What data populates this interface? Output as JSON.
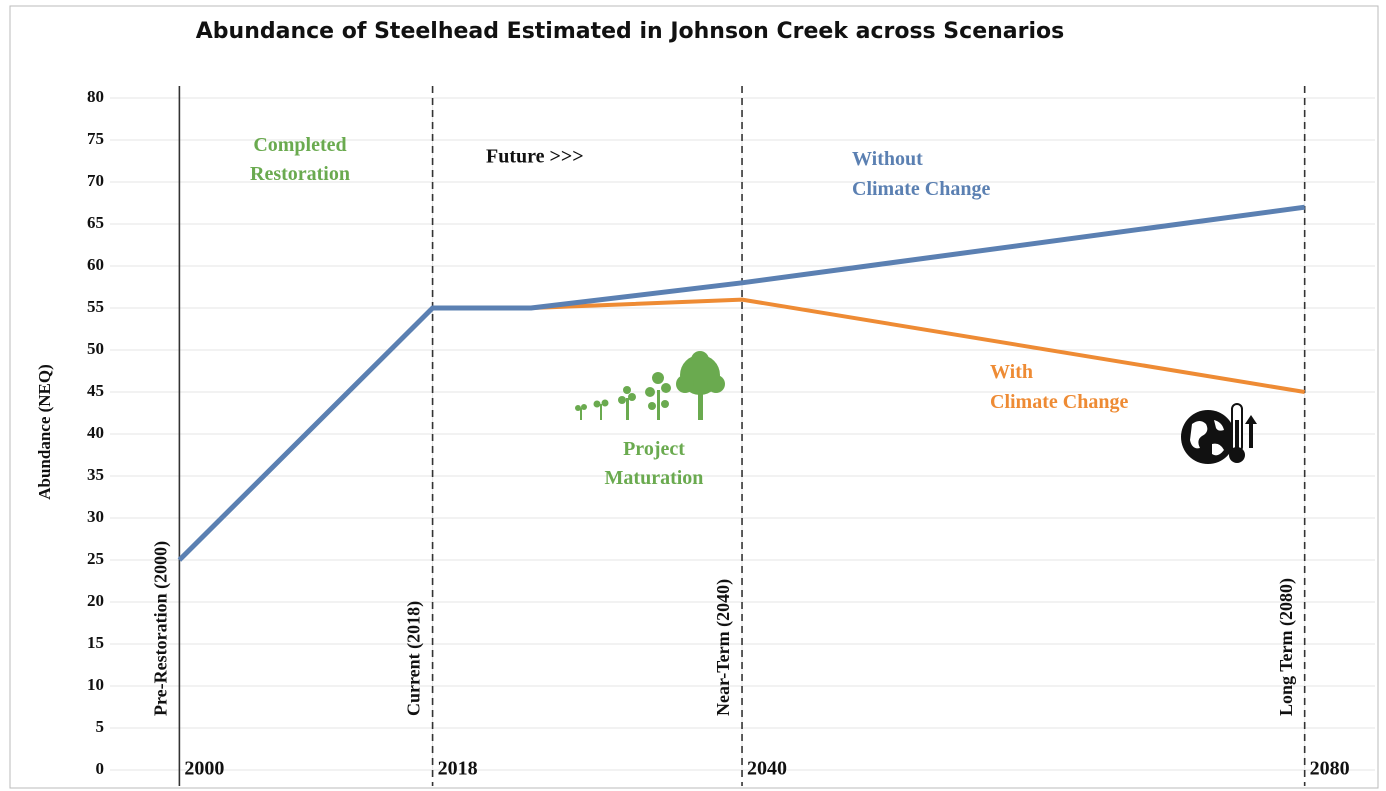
{
  "chart_data": {
    "type": "line",
    "title": "Abundance of Steelhead Estimated in Johnson Creek across Scenarios",
    "y_label": "Abundance (NEQ)",
    "x": [
      2000,
      2018,
      2025,
      2040,
      2080
    ],
    "series": [
      {
        "name": "Without Climate Change",
        "color": "#5b80b2",
        "values": [
          25,
          55,
          55,
          58,
          67
        ]
      },
      {
        "name": "With Climate Change",
        "color": "#ee8b34",
        "values": [
          null,
          null,
          55,
          56,
          45
        ]
      }
    ],
    "xlim": [
      1994,
      2085
    ],
    "xticks": [
      2000,
      2018,
      2040,
      2080
    ],
    "ylim": [
      0,
      80
    ],
    "yticks": [
      0,
      5,
      10,
      15,
      20,
      25,
      30,
      35,
      40,
      45,
      50,
      55,
      60,
      65,
      70,
      75,
      80
    ],
    "grid": true,
    "markers": [
      {
        "x": 2000,
        "label": "Pre-Restoration (2000)",
        "style": "solid"
      },
      {
        "x": 2018,
        "label": "Current (2018)",
        "style": "dashed"
      },
      {
        "x": 2040,
        "label": "Near-Term (2040)",
        "style": "dashed"
      },
      {
        "x": 2080,
        "label": "Long Term (2080)",
        "style": "dashed"
      }
    ],
    "annotations": [
      {
        "text": "Completed Restoration",
        "color": "#6aaa4f"
      },
      {
        "text": "Future >>>",
        "color": "#111111"
      },
      {
        "text": "Project Maturation",
        "color": "#6aaa4f"
      }
    ]
  }
}
